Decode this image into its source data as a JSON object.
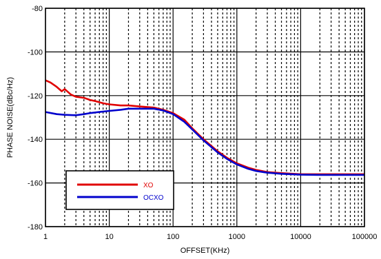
{
  "chart_data": {
    "type": "line",
    "xlabel": "OFFSET(KHz)",
    "ylabel": "PHASE NOISE(dBc/Hz)",
    "x_scale": "log",
    "xlim": [
      1,
      100000
    ],
    "ylim": [
      -180,
      -80
    ],
    "x_ticks": [
      1,
      10,
      100,
      1000,
      10000,
      100000
    ],
    "x_tick_labels": [
      "1",
      "10",
      "100",
      "1000",
      "10000",
      "100000"
    ],
    "y_ticks": [
      -180,
      -160,
      -140,
      -120,
      -100,
      -80
    ],
    "y_tick_labels": [
      "-180",
      "-160",
      "-140",
      "-120",
      "-100",
      "-80"
    ],
    "grid": true,
    "legend_position": "bottom-left",
    "series": [
      {
        "name": "XO",
        "color": "#e00000",
        "points": [
          [
            1,
            -113
          ],
          [
            1.2,
            -114
          ],
          [
            1.5,
            -116
          ],
          [
            1.8,
            -118
          ],
          [
            2,
            -117
          ],
          [
            2.5,
            -119.5
          ],
          [
            3,
            -120.5
          ],
          [
            4,
            -121
          ],
          [
            5,
            -122
          ],
          [
            6,
            -122.5
          ],
          [
            8,
            -123.5
          ],
          [
            10,
            -124
          ],
          [
            15,
            -124.5
          ],
          [
            20,
            -124.5
          ],
          [
            30,
            -125
          ],
          [
            50,
            -125.5
          ],
          [
            70,
            -126.5
          ],
          [
            100,
            -128
          ],
          [
            150,
            -131
          ],
          [
            200,
            -135
          ],
          [
            300,
            -140
          ],
          [
            500,
            -145.5
          ],
          [
            700,
            -148.5
          ],
          [
            1000,
            -151
          ],
          [
            1500,
            -153
          ],
          [
            2000,
            -154
          ],
          [
            3000,
            -155
          ],
          [
            5000,
            -155.5
          ],
          [
            10000,
            -156
          ],
          [
            20000,
            -156
          ],
          [
            50000,
            -156
          ],
          [
            100000,
            -156
          ]
        ]
      },
      {
        "name": "OCXO",
        "color": "#0000cc",
        "points": [
          [
            1,
            -127.5
          ],
          [
            1.5,
            -128.5
          ],
          [
            2,
            -128.8
          ],
          [
            3,
            -129
          ],
          [
            4,
            -128.5
          ],
          [
            5,
            -128
          ],
          [
            7,
            -127.5
          ],
          [
            10,
            -127
          ],
          [
            15,
            -126.5
          ],
          [
            20,
            -126
          ],
          [
            30,
            -126
          ],
          [
            50,
            -126
          ],
          [
            70,
            -126.8
          ],
          [
            100,
            -128.5
          ],
          [
            150,
            -132
          ],
          [
            200,
            -135.5
          ],
          [
            300,
            -140.5
          ],
          [
            500,
            -146
          ],
          [
            700,
            -149
          ],
          [
            1000,
            -151.5
          ],
          [
            1500,
            -153.5
          ],
          [
            2000,
            -154.5
          ],
          [
            3000,
            -155.3
          ],
          [
            5000,
            -155.8
          ],
          [
            10000,
            -156.2
          ],
          [
            20000,
            -156.3
          ],
          [
            50000,
            -156.3
          ],
          [
            100000,
            -156.3
          ]
        ]
      }
    ]
  }
}
